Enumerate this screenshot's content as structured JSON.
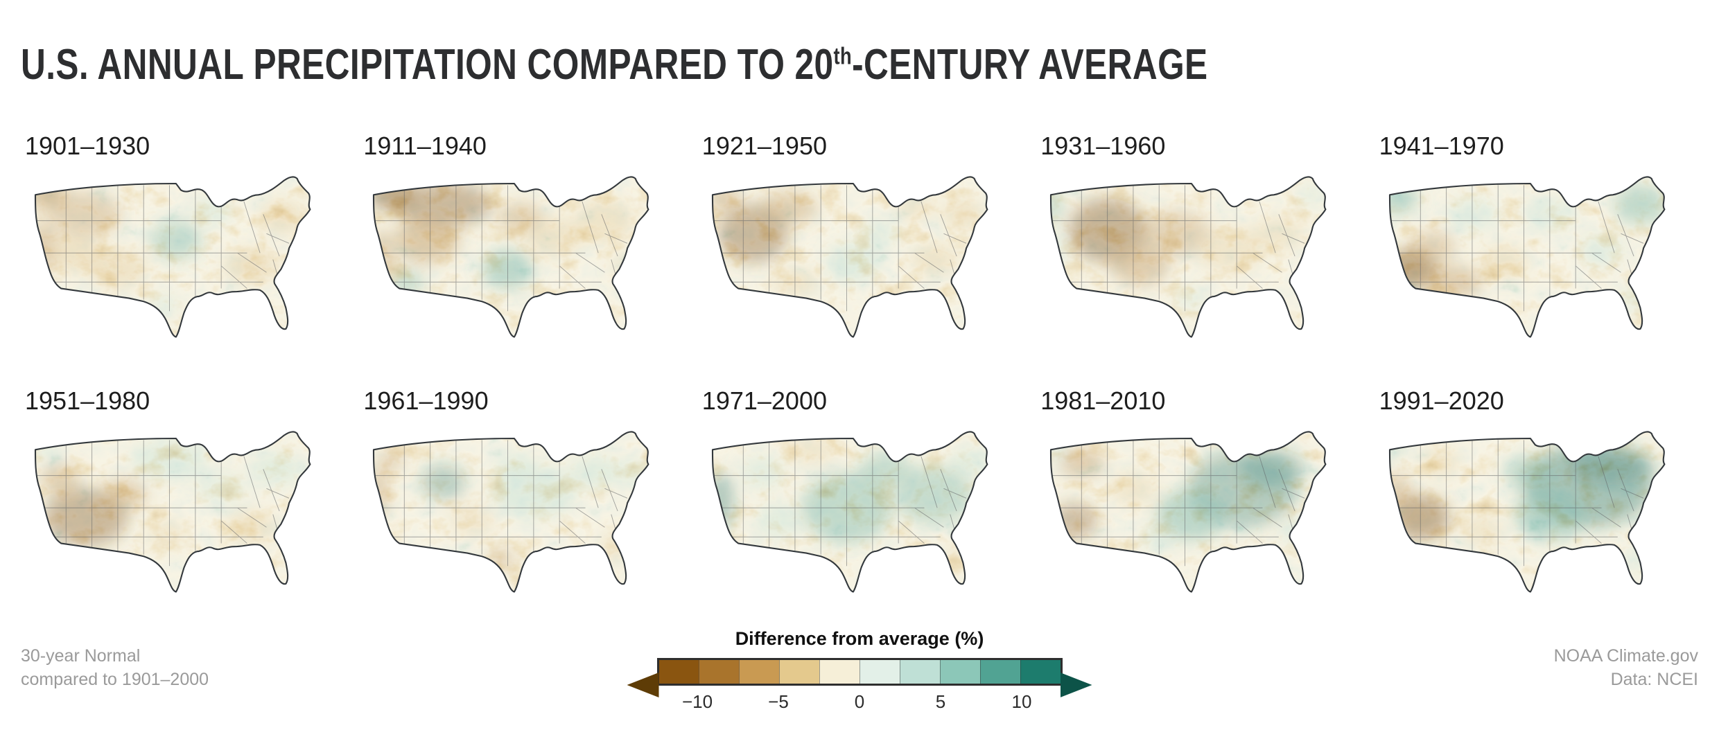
{
  "title": {
    "prefix": "U.S. ANNUAL PRECIPITATION COMPARED TO 20",
    "sup": "th",
    "suffix": "-CENTURY AVERAGE"
  },
  "footnotes": {
    "left_line1": "30-year Normal",
    "left_line2": "compared to 1901–2000",
    "right_line1": "NOAA Climate.gov",
    "right_line2": "Data: NCEI"
  },
  "legend": {
    "title": "Difference from average (%)",
    "ticks": [
      "−10",
      "−5",
      "0",
      "5",
      "10"
    ],
    "tick_positions": [
      10,
      30,
      50,
      70,
      90
    ],
    "cells": [
      "#8a5510",
      "#a9742c",
      "#c99a52",
      "#e4c98d",
      "#f6efd8",
      "#e3f0e8",
      "#bfe0d6",
      "#8cc7b8",
      "#51a393",
      "#1d7c6d"
    ],
    "arrow_left": "#5e3c06",
    "arrow_right": "#0d5348"
  },
  "chart_data": {
    "type": "heatmap",
    "subtype": "small-multiple US maps of precipitation anomaly",
    "title": "U.S. Annual Precipitation Compared to 20th-Century Average",
    "legend_title": "Difference from average (%)",
    "unit": "% difference from 1901–2000 average",
    "value_range": [
      -12.5,
      12.5
    ],
    "bin_width": 2.5,
    "colorbar_ticks": [
      -10,
      -5,
      0,
      5,
      10
    ],
    "colorbar_colors": [
      "#8a5510",
      "#a9742c",
      "#c99a52",
      "#e4c98d",
      "#f6efd8",
      "#e3f0e8",
      "#bfe0d6",
      "#8cc7b8",
      "#51a393",
      "#1d7c6d"
    ],
    "palette": {
      "b3": "#7a4c0e",
      "b2": "#ad7a33",
      "b1": "#d9b878",
      "t1": "#a8d6ca",
      "t2": "#43998a",
      "t3": "#15685e"
    },
    "blob_format": "[cx,cy,rx,ry,palette_key,opacity] approximate anomaly regions in 200x120 map coords (west=left, north=top)",
    "panels": [
      {
        "label": "1901–1930",
        "summary": "Drier West, Northeast and Southeast; slightly wetter central Plains",
        "blobs": [
          [
            16,
            16,
            12,
            9,
            "b2",
            0.7
          ],
          [
            14,
            48,
            8,
            16,
            "b2",
            0.55
          ],
          [
            40,
            28,
            22,
            14,
            "b2",
            0.45
          ],
          [
            34,
            52,
            16,
            12,
            "b1",
            0.5
          ],
          [
            60,
            62,
            18,
            11,
            "b1",
            0.5
          ],
          [
            96,
            44,
            16,
            12,
            "t2",
            0.45
          ],
          [
            118,
            26,
            12,
            8,
            "t1",
            0.45
          ],
          [
            142,
            60,
            16,
            10,
            "b1",
            0.55
          ],
          [
            162,
            30,
            14,
            10,
            "b1",
            0.5
          ],
          [
            88,
            84,
            10,
            7,
            "t1",
            0.35
          ]
        ]
      },
      {
        "label": "1911–1940",
        "summary": "Much drier Northwest and northern Plains; wetter southern Plains",
        "blobs": [
          [
            20,
            16,
            14,
            10,
            "b3",
            0.75
          ],
          [
            52,
            22,
            30,
            14,
            "b3",
            0.6
          ],
          [
            42,
            44,
            20,
            14,
            "b2",
            0.6
          ],
          [
            14,
            52,
            7,
            14,
            "b2",
            0.55
          ],
          [
            100,
            30,
            14,
            9,
            "b2",
            0.5
          ],
          [
            92,
            62,
            16,
            12,
            "t2",
            0.55
          ],
          [
            30,
            70,
            10,
            8,
            "t2",
            0.45
          ],
          [
            120,
            42,
            18,
            12,
            "b1",
            0.45
          ],
          [
            152,
            32,
            18,
            14,
            "b1",
            0.45
          ],
          [
            166,
            60,
            10,
            7,
            "b1",
            0.4
          ]
        ]
      },
      {
        "label": "1921–1950",
        "summary": "Drier West and Northeast; near average center",
        "blobs": [
          [
            34,
            40,
            22,
            18,
            "b3",
            0.6
          ],
          [
            16,
            18,
            10,
            8,
            "b2",
            0.55
          ],
          [
            56,
            24,
            18,
            10,
            "b2",
            0.5
          ],
          [
            96,
            58,
            16,
            12,
            "t1",
            0.5
          ],
          [
            112,
            40,
            12,
            8,
            "t1",
            0.4
          ],
          [
            146,
            56,
            14,
            10,
            "b1",
            0.45
          ],
          [
            164,
            28,
            12,
            9,
            "b1",
            0.5
          ],
          [
            60,
            70,
            14,
            8,
            "b1",
            0.45
          ],
          [
            134,
            24,
            12,
            8,
            "b1",
            0.4
          ]
        ]
      },
      {
        "label": "1931–1960",
        "summary": "Dust Bowl dryness in the interior West and Plains; wetter Pacific coast fringe",
        "blobs": [
          [
            44,
            38,
            24,
            20,
            "b3",
            0.65
          ],
          [
            64,
            60,
            18,
            12,
            "b2",
            0.55
          ],
          [
            86,
            40,
            22,
            14,
            "b2",
            0.45
          ],
          [
            10,
            22,
            5,
            12,
            "t2",
            0.5
          ],
          [
            12,
            50,
            5,
            12,
            "t1",
            0.45
          ],
          [
            120,
            50,
            20,
            14,
            "b1",
            0.4
          ],
          [
            150,
            40,
            16,
            10,
            "b1",
            0.4
          ],
          [
            170,
            16,
            8,
            6,
            "t1",
            0.4
          ],
          [
            96,
            80,
            10,
            7,
            "t1",
            0.35
          ]
        ]
      },
      {
        "label": "1941–1970",
        "summary": "Wetter Northwest and Northeast; much drier Southwest",
        "blobs": [
          [
            22,
            62,
            16,
            12,
            "b3",
            0.8
          ],
          [
            48,
            70,
            18,
            10,
            "b2",
            0.55
          ],
          [
            36,
            48,
            14,
            10,
            "b2",
            0.45
          ],
          [
            14,
            18,
            12,
            10,
            "t2",
            0.55
          ],
          [
            60,
            28,
            16,
            10,
            "t1",
            0.4
          ],
          [
            164,
            22,
            16,
            12,
            "t2",
            0.5
          ],
          [
            140,
            50,
            14,
            10,
            "t1",
            0.4
          ],
          [
            108,
            28,
            16,
            10,
            "t1",
            0.4
          ],
          [
            80,
            58,
            14,
            10,
            "b1",
            0.45
          ],
          [
            160,
            80,
            8,
            8,
            "t1",
            0.35
          ]
        ]
      },
      {
        "label": "1951–1980",
        "summary": "Drier Southwest; slightly wetter North and Northeast",
        "blobs": [
          [
            40,
            58,
            26,
            18,
            "b3",
            0.6
          ],
          [
            24,
            34,
            12,
            10,
            "b2",
            0.5
          ],
          [
            64,
            44,
            14,
            10,
            "b2",
            0.5
          ],
          [
            92,
            22,
            24,
            12,
            "t1",
            0.45
          ],
          [
            158,
            28,
            16,
            10,
            "t1",
            0.45
          ],
          [
            124,
            40,
            16,
            10,
            "t1",
            0.35
          ],
          [
            142,
            64,
            16,
            10,
            "b1",
            0.45
          ],
          [
            90,
            68,
            12,
            8,
            "b1",
            0.4
          ],
          [
            16,
            16,
            8,
            6,
            "t1",
            0.4
          ]
        ]
      },
      {
        "label": "1961–1990",
        "summary": "Slightly wetter overall; drier California coast, south Texas and Florida",
        "blobs": [
          [
            12,
            42,
            6,
            16,
            "b2",
            0.55
          ],
          [
            20,
            22,
            8,
            7,
            "b2",
            0.45
          ],
          [
            52,
            36,
            14,
            11,
            "t3",
            0.45
          ],
          [
            108,
            42,
            26,
            16,
            "t1",
            0.5
          ],
          [
            146,
            30,
            16,
            10,
            "t1",
            0.45
          ],
          [
            96,
            26,
            12,
            8,
            "t1",
            0.4
          ],
          [
            88,
            84,
            9,
            7,
            "b2",
            0.45
          ],
          [
            158,
            76,
            7,
            9,
            "b1",
            0.5
          ],
          [
            70,
            60,
            14,
            10,
            "b1",
            0.35
          ],
          [
            170,
            30,
            10,
            8,
            "t1",
            0.4
          ]
        ]
      },
      {
        "label": "1971–2000",
        "summary": "Wetter across most of the country",
        "blobs": [
          [
            14,
            48,
            8,
            18,
            "t3",
            0.55
          ],
          [
            92,
            52,
            28,
            22,
            "t2",
            0.5
          ],
          [
            146,
            44,
            24,
            18,
            "t2",
            0.45
          ],
          [
            116,
            28,
            16,
            10,
            "t2",
            0.45
          ],
          [
            50,
            60,
            14,
            10,
            "t1",
            0.45
          ],
          [
            40,
            30,
            14,
            10,
            "t1",
            0.4
          ],
          [
            70,
            16,
            16,
            8,
            "b1",
            0.4
          ],
          [
            160,
            82,
            6,
            8,
            "b1",
            0.4
          ],
          [
            168,
            24,
            12,
            9,
            "t1",
            0.45
          ]
        ]
      },
      {
        "label": "1981–2010",
        "summary": "Much wetter East and Midwest; drier Northwest interior and Southwest",
        "blobs": [
          [
            128,
            40,
            34,
            24,
            "t3",
            0.5
          ],
          [
            96,
            56,
            22,
            16,
            "t2",
            0.55
          ],
          [
            146,
            28,
            20,
            12,
            "t3",
            0.5
          ],
          [
            28,
            24,
            14,
            9,
            "b2",
            0.55
          ],
          [
            24,
            60,
            14,
            11,
            "b3",
            0.55
          ],
          [
            12,
            16,
            6,
            8,
            "t1",
            0.45
          ],
          [
            60,
            40,
            14,
            10,
            "b1",
            0.4
          ],
          [
            160,
            66,
            10,
            8,
            "t1",
            0.4
          ],
          [
            76,
            70,
            12,
            8,
            "t1",
            0.4
          ]
        ]
      },
      {
        "label": "1991–2020",
        "summary": "Wettest East and Midwest of the record; much drier Southwest",
        "blobs": [
          [
            132,
            38,
            40,
            26,
            "t3",
            0.6
          ],
          [
            146,
            26,
            26,
            12,
            "t3",
            0.6
          ],
          [
            108,
            56,
            22,
            16,
            "t2",
            0.55
          ],
          [
            96,
            30,
            16,
            10,
            "t2",
            0.5
          ],
          [
            28,
            58,
            18,
            14,
            "b3",
            0.7
          ],
          [
            14,
            44,
            7,
            14,
            "b2",
            0.55
          ],
          [
            40,
            24,
            12,
            8,
            "b1",
            0.45
          ],
          [
            10,
            14,
            6,
            6,
            "t2",
            0.45
          ],
          [
            164,
            84,
            7,
            8,
            "t1",
            0.4
          ],
          [
            66,
            66,
            12,
            9,
            "b1",
            0.4
          ]
        ]
      }
    ]
  }
}
